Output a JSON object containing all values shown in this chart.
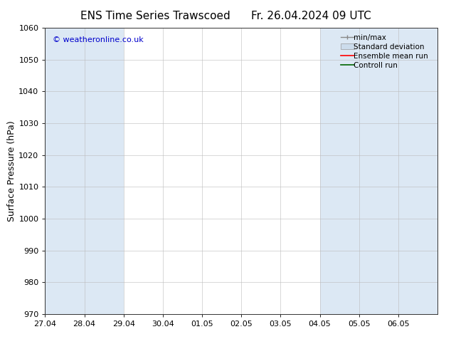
{
  "title_left": "ENS Time Series Trawscoed",
  "title_right": "Fr. 26.04.2024 09 UTC",
  "ylabel": "Surface Pressure (hPa)",
  "ylim": [
    970,
    1060
  ],
  "yticks": [
    970,
    980,
    990,
    1000,
    1010,
    1020,
    1030,
    1040,
    1050,
    1060
  ],
  "xtick_labels": [
    "27.04",
    "28.04",
    "29.04",
    "30.04",
    "01.05",
    "02.05",
    "03.05",
    "04.05",
    "05.05",
    "06.05"
  ],
  "watermark": "© weatheronline.co.uk",
  "watermark_color": "#0000cc",
  "shaded_color": "#dce8f4",
  "background_color": "#ffffff",
  "legend_labels": [
    "min/max",
    "Standard deviation",
    "Ensemble mean run",
    "Controll run"
  ],
  "legend_colors": [
    "#a0a0a0",
    "#ccdcec",
    "#ff0000",
    "#006600"
  ],
  "shaded_intervals": [
    0,
    1,
    7,
    8,
    9
  ],
  "title_fontsize": 11,
  "tick_fontsize": 8,
  "ylabel_fontsize": 9,
  "legend_fontsize": 7.5,
  "num_days": 10,
  "xlim": [
    0,
    10
  ]
}
